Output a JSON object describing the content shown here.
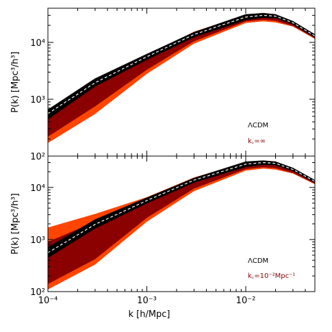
{
  "chart_data": [
    {
      "type": "area",
      "panel": "top",
      "xscale": "log",
      "yscale": "log",
      "xlim": [
        0.0001,
        0.05
      ],
      "ylim": [
        100,
        40000
      ],
      "ylabel": "P(k) [Mpc³/h³]",
      "y_ticks": [
        {
          "value": 100,
          "label": "10²"
        },
        {
          "value": 1000,
          "label": "10³"
        },
        {
          "value": 10000,
          "label": "10⁴"
        }
      ],
      "annotations": [
        {
          "text": "ΛCDM",
          "color": "#000000"
        },
        {
          "text": "k꜀=∞",
          "color": "#8b0000"
        }
      ],
      "x": [
        0.0001,
        0.0003,
        0.001,
        0.003,
        0.01,
        0.015,
        0.02,
        0.03,
        0.05
      ],
      "series": [
        {
          "role": "outer-band",
          "color": "#ff4500",
          "lower": [
            170,
            550,
            2800,
            9500,
            22000,
            23500,
            22500,
            19000,
            11500
          ],
          "upper": [
            420,
            1700,
            5800,
            15500,
            30500,
            33000,
            31500,
            22500,
            13500
          ]
        },
        {
          "role": "inner-band",
          "color": "#8b0000",
          "lower": [
            220,
            750,
            3300,
            10500,
            23500,
            25000,
            24000,
            19500,
            11800
          ],
          "upper": [
            450,
            1800,
            5600,
            14500,
            28500,
            31000,
            30000,
            22000,
            13200
          ]
        },
        {
          "role": "black-band",
          "color": "#000000",
          "lower": [
            450,
            1700,
            5000,
            12500,
            25000,
            27500,
            27000,
            21000,
            12400
          ],
          "upper": [
            650,
            2300,
            6200,
            15000,
            31000,
            32500,
            31000,
            23500,
            13700
          ]
        },
        {
          "role": "model",
          "style": "dashed",
          "color": "#ffffff",
          "values": [
            560,
            1950,
            5600,
            13800,
            28000,
            30000,
            29000,
            22200,
            13000
          ]
        }
      ]
    },
    {
      "type": "area",
      "panel": "bottom",
      "xscale": "log",
      "yscale": "log",
      "xlim": [
        0.0001,
        0.05
      ],
      "ylim": [
        100,
        40000
      ],
      "xlabel": "k [h/Mpc]",
      "ylabel": "P(k) [Mpc³/h³]",
      "x_ticks": [
        {
          "value": 0.0001,
          "label": "10⁻⁴"
        },
        {
          "value": 0.001,
          "label": "10⁻³"
        },
        {
          "value": 0.01,
          "label": "10⁻²"
        }
      ],
      "y_ticks": [
        {
          "value": 100,
          "label": "10²"
        },
        {
          "value": 1000,
          "label": "10³"
        },
        {
          "value": 10000,
          "label": "10⁴"
        }
      ],
      "annotations": [
        {
          "text": "ΛCDM",
          "color": "#000000"
        },
        {
          "text": "k꜀=10⁻²Mpc⁻¹",
          "color": "#8b0000"
        }
      ],
      "x": [
        0.0001,
        0.0003,
        0.001,
        0.003,
        0.01,
        0.015,
        0.02,
        0.03,
        0.05
      ],
      "series": [
        {
          "role": "outer-band",
          "color": "#ff4500",
          "lower": [
            110,
            330,
            2200,
            8500,
            21000,
            23000,
            22000,
            18500,
            11500
          ],
          "upper": [
            1700,
            3100,
            6500,
            15500,
            30500,
            33000,
            31500,
            22500,
            13500
          ]
        },
        {
          "role": "inner-band",
          "color": "#8b0000",
          "lower": [
            140,
            420,
            2600,
            9500,
            22500,
            24500,
            23500,
            19000,
            11800
          ],
          "upper": [
            900,
            2200,
            5600,
            14500,
            28500,
            31000,
            30000,
            22000,
            13200
          ]
        },
        {
          "role": "black-band",
          "color": "#000000",
          "lower": [
            450,
            1650,
            5000,
            12500,
            25000,
            27500,
            27000,
            21000,
            12400
          ],
          "upper": [
            700,
            2400,
            6300,
            15000,
            31000,
            32500,
            31000,
            23500,
            13700
          ]
        },
        {
          "role": "model",
          "style": "dashed",
          "color": "#ffffff",
          "values": [
            560,
            1950,
            5600,
            13800,
            28000,
            30000,
            29000,
            22200,
            13000
          ]
        }
      ]
    }
  ]
}
